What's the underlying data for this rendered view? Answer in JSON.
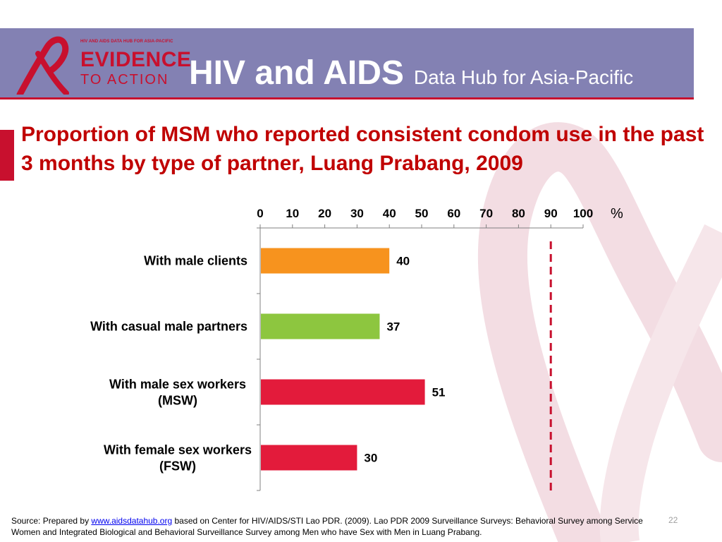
{
  "header": {
    "logo_small_text": "HIV AND AIDS DATA HUB FOR ASIA-PACIFIC",
    "logo_line1": "EVIDENCE",
    "logo_line2": "TO ACTION",
    "title_main": "HIV and AIDS",
    "title_sub": "Data Hub for Asia-Pacific"
  },
  "slide": {
    "title": "Proportion of MSM who reported consistent condom use in the past 3 months by type of partner, Luang Prabang, 2009",
    "page_number": "22"
  },
  "colors": {
    "header_bg": "#8381b3",
    "accent_red": "#c8102e",
    "title_red": "#c00000",
    "bar_orange": "#f7931e",
    "bar_green": "#8dc63f",
    "bar_red": "#e31b3b",
    "target_line": "#c8102e"
  },
  "chart_data": {
    "type": "bar",
    "orientation": "horizontal",
    "categories": [
      "With male clients",
      "With casual male partners",
      "With male sex workers (MSW)",
      "With female sex workers (FSW)"
    ],
    "category_lines": [
      [
        "With male clients"
      ],
      [
        "With casual male partners"
      ],
      [
        "With male sex workers",
        "(MSW)"
      ],
      [
        "With female sex workers",
        "(FSW)"
      ]
    ],
    "values": [
      40,
      37,
      51,
      30
    ],
    "bar_colors": [
      "#f7931e",
      "#8dc63f",
      "#e31b3b",
      "#e31b3b"
    ],
    "xlim": [
      0,
      100
    ],
    "x_ticks": [
      0,
      10,
      20,
      30,
      40,
      50,
      60,
      70,
      80,
      90,
      100
    ],
    "x_axis_position": "top",
    "unit_label": "%",
    "reference_line": {
      "value": 90,
      "style": "dashed"
    },
    "grid": false,
    "legend": "none"
  },
  "source": {
    "prefix": "Source: Prepared by ",
    "link_text": "www.aidsdatahub.org",
    "suffix": "  based on Center for HIV/AIDS/STI Lao PDR. (2009). Lao PDR 2009 Surveillance Surveys: Behavioral Survey among Service Women and Integrated Biological and Behavioral Surveillance Survey among Men who have Sex with Men in Luang Prabang."
  }
}
